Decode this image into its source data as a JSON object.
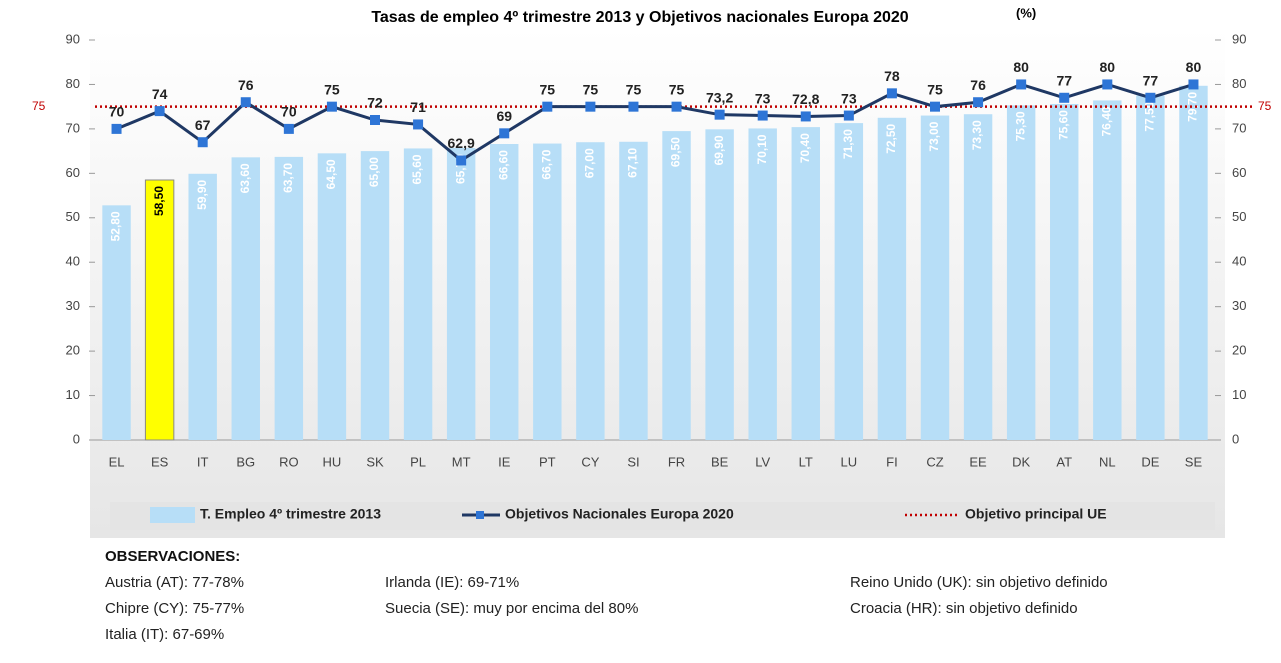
{
  "chart_data": {
    "type": "bar",
    "title": "Tasas de empleo 4º trimestre 2013 y Objetivos nacionales Europa 2020",
    "unit": "(%)",
    "categories": [
      "EL",
      "ES",
      "IT",
      "BG",
      "RO",
      "HU",
      "SK",
      "PL",
      "MT",
      "IE",
      "PT",
      "CY",
      "SI",
      "FR",
      "BE",
      "LV",
      "LT",
      "LU",
      "FI",
      "CZ",
      "EE",
      "DK",
      "AT",
      "NL",
      "DE",
      "SE"
    ],
    "series": [
      {
        "name": "T. Empleo 4º trimestre 2013",
        "type": "bar",
        "color": "#b7def7",
        "bar_colors": [
          "#b7def7",
          "#ffff00",
          "#b7def7",
          "#b7def7",
          "#b7def7",
          "#b7def7",
          "#b7def7",
          "#b7def7",
          "#b7def7",
          "#b7def7",
          "#b7def7",
          "#b7def7",
          "#b7def7",
          "#b7def7",
          "#b7def7",
          "#b7def7",
          "#b7def7",
          "#b7def7",
          "#b7def7",
          "#b7def7",
          "#b7def7",
          "#b7def7",
          "#b7def7",
          "#b7def7",
          "#b7def7",
          "#b7def7"
        ],
        "values": [
          52.8,
          58.5,
          59.9,
          63.6,
          63.7,
          64.5,
          65.0,
          65.6,
          65.7,
          66.6,
          66.7,
          67.0,
          67.1,
          69.5,
          69.9,
          70.1,
          70.4,
          71.3,
          72.5,
          73.0,
          73.3,
          75.3,
          75.6,
          76.4,
          77.5,
          79.7
        ],
        "value_labels": [
          "52,80",
          "58,50",
          "59,90",
          "63,60",
          "63,70",
          "64,50",
          "65,00",
          "65,60",
          "65,70",
          "66,60",
          "66,70",
          "67,00",
          "67,10",
          "69,50",
          "69,90",
          "70,10",
          "70,40",
          "71,30",
          "72,50",
          "73,00",
          "73,30",
          "75,30",
          "75,60",
          "76,40",
          "77,50",
          "79,70"
        ]
      },
      {
        "name": "Objetivos Nacionales Europa 2020",
        "type": "line",
        "color": "#1f3864",
        "marker_color": "#2e75d6",
        "values": [
          70,
          74,
          67,
          76,
          70,
          75,
          72,
          71,
          62.9,
          69,
          75,
          75,
          75,
          75,
          73.2,
          73,
          72.8,
          73,
          78,
          75,
          76,
          80,
          77,
          80,
          77,
          80
        ],
        "value_labels": [
          "70",
          "74",
          "67",
          "76",
          "70",
          "75",
          "72",
          "71",
          "62,9",
          "69",
          "75",
          "75",
          "75",
          "75",
          "73,2",
          "73",
          "72,8",
          "73",
          "78",
          "75",
          "76",
          "80",
          "77",
          "80",
          "77",
          "80"
        ]
      }
    ],
    "reference": {
      "name": "Objetivo principal UE",
      "value": 75,
      "color": "#c00000"
    },
    "ylim": [
      0,
      90
    ],
    "yticks": [
      0,
      10,
      20,
      30,
      40,
      50,
      60,
      70,
      80,
      90
    ],
    "y2lim": [
      0,
      90
    ],
    "y2ticks": [
      0,
      10,
      20,
      30,
      40,
      50,
      60,
      70,
      80,
      90
    ]
  },
  "observations": {
    "title": "OBSERVACIONES:",
    "rows": [
      [
        "Austria (AT): 77-78%",
        "Irlanda (IE): 69-71%",
        "Reino Unido (UK): sin objetivo definido"
      ],
      [
        "Chipre (CY): 75-77%",
        "Suecia (SE): muy por encima del 80%",
        "Croacia (HR): sin objetivo definido"
      ],
      [
        "Italia (IT): 67-69%"
      ]
    ]
  }
}
